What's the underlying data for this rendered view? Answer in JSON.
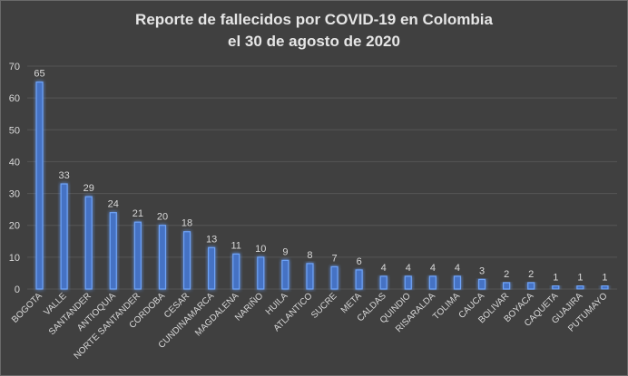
{
  "chart_data": {
    "type": "bar",
    "title": [
      "Reporte de fallecidos por COVID-19 en Colombia",
      "el 30 de agosto de 2020"
    ],
    "categories": [
      "BOGOTA",
      "VALLE",
      "SANTANDER",
      "ANTIOQUIA",
      "NORTE SANTANDER",
      "CORDOBA",
      "CESAR",
      "CUNDINAMARCA",
      "MAGDALENA",
      "NARIÑO",
      "HUILA",
      "ATLANTICO",
      "SUCRE",
      "META",
      "CALDAS",
      "QUINDIO",
      "RISARALDA",
      "TOLIMA",
      "CAUCA",
      "BOLIVAR",
      "BOYACA",
      "CAQUETA",
      "GUAJIRA",
      "PUTUMAYO"
    ],
    "values": [
      65,
      33,
      29,
      24,
      21,
      20,
      18,
      13,
      11,
      10,
      9,
      8,
      7,
      6,
      4,
      4,
      4,
      4,
      3,
      2,
      2,
      1,
      1,
      1
    ],
    "ylim": [
      0,
      70
    ],
    "yticks": [
      0,
      10,
      20,
      30,
      40,
      50,
      60,
      70
    ],
    "grid": true,
    "bar_color": "#4472c4",
    "bar_glow": "#6fa3f7",
    "background": "#404040"
  }
}
